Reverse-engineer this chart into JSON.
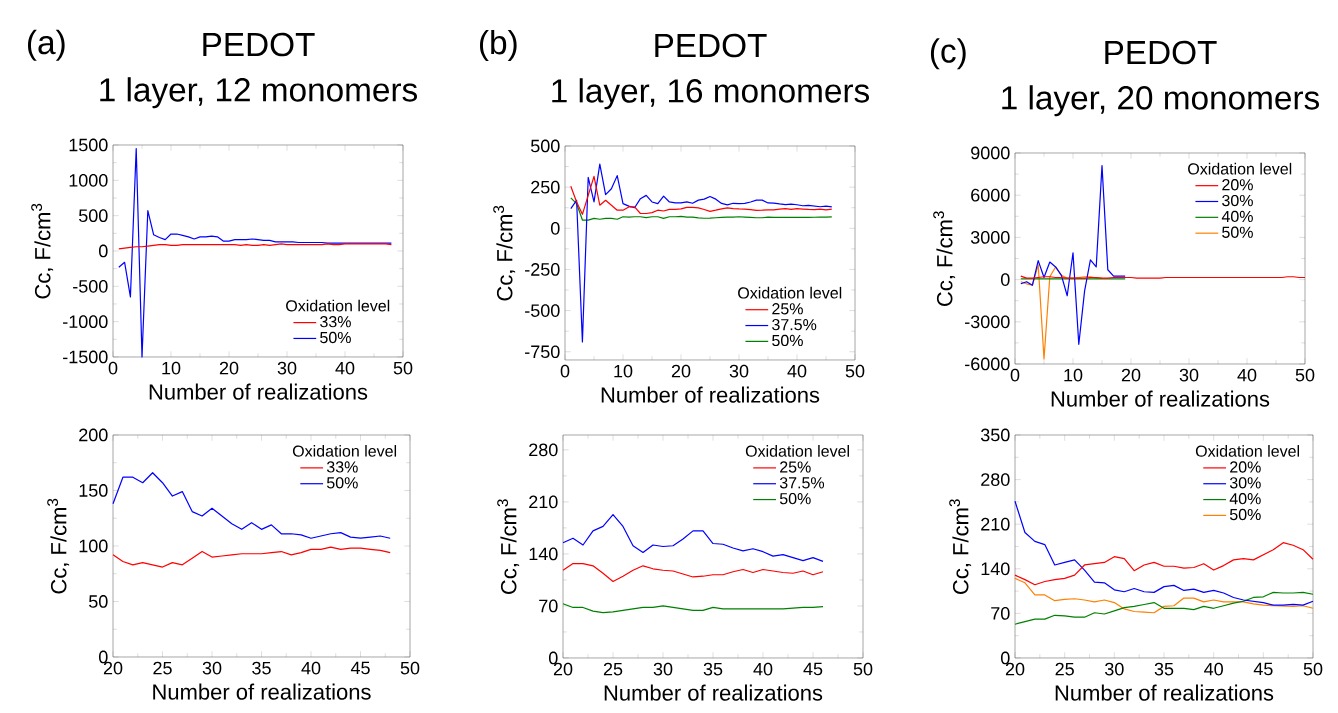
{
  "chart_data": [
    {
      "type": "line",
      "title": "PEDOT",
      "subtitle": "1 layer, 12 monomers",
      "annotations": [
        "(a)"
      ],
      "xlabel": "Number of realizations",
      "ylabel": "Cc, F/cm$^{3}$",
      "legend_title": "Oxidation level",
      "legend": "bottom right",
      "marker": "none",
      "line_style": "solid",
      "xlim": [
        0,
        50
      ],
      "xticks": [
        0,
        10,
        20,
        30,
        40,
        50
      ],
      "ylim": [
        -1500,
        1500
      ],
      "yticks": [
        -1500,
        -1000,
        -500,
        0,
        500,
        1000,
        1500
      ],
      "x": [
        1,
        2,
        3,
        4,
        5,
        6,
        7,
        8,
        9,
        10,
        11,
        12,
        13,
        14,
        15,
        16,
        17,
        18,
        19,
        20,
        21,
        22,
        23,
        24,
        25,
        26,
        27,
        28,
        29,
        30,
        31,
        32,
        33,
        34,
        35,
        36,
        37,
        38,
        39,
        40,
        41,
        42,
        43,
        44,
        45,
        46,
        47,
        48
      ],
      "series": [
        {
          "name": "33%",
          "color": "#ff0000",
          "values": [
            30,
            40,
            50,
            60,
            60,
            70,
            80,
            90,
            90,
            80,
            80,
            90,
            90,
            90,
            90,
            90,
            90,
            90,
            90,
            90,
            90,
            80,
            90,
            80,
            80,
            90,
            80,
            90,
            100,
            90,
            90,
            90,
            90,
            90,
            90,
            90,
            100,
            90,
            90,
            100,
            100,
            100,
            100,
            100,
            100,
            100,
            100,
            90
          ]
        },
        {
          "name": "50%",
          "color": "#0000ff",
          "values": [
            -230,
            -160,
            -650,
            1450,
            -1500,
            570,
            230,
            190,
            160,
            240,
            240,
            220,
            200,
            170,
            200,
            200,
            210,
            200,
            140,
            140,
            160,
            160,
            160,
            170,
            160,
            150,
            150,
            130,
            130,
            130,
            130,
            120,
            120,
            120,
            120,
            120,
            110,
            110,
            110,
            110,
            110,
            110,
            110,
            110,
            110,
            110,
            110,
            110
          ]
        }
      ]
    },
    {
      "type": "line",
      "xlabel": "Number of realizations",
      "ylabel": "Cc, F/cm$^{3}$",
      "legend_title": "Oxidation level",
      "legend": "top right",
      "marker": "none",
      "line_style": "solid",
      "xlim": [
        20,
        50
      ],
      "xticks": [
        20,
        25,
        30,
        35,
        40,
        45,
        50
      ],
      "ylim": [
        0,
        200
      ],
      "yticks": [
        0,
        50,
        100,
        150,
        200
      ],
      "x": [
        20,
        21,
        22,
        23,
        24,
        25,
        26,
        27,
        28,
        29,
        30,
        31,
        32,
        33,
        34,
        35,
        36,
        37,
        38,
        39,
        40,
        41,
        42,
        43,
        44,
        45,
        46,
        47,
        48
      ],
      "series": [
        {
          "name": "33%",
          "color": "#ff0000",
          "values": [
            92,
            86,
            83,
            85,
            83,
            81,
            85,
            83,
            89,
            95,
            90,
            91,
            92,
            93,
            93,
            93,
            94,
            95,
            92,
            94,
            97,
            97,
            99,
            97,
            98,
            98,
            97,
            96,
            94
          ]
        },
        {
          "name": "50%",
          "color": "#0000ff",
          "values": [
            138,
            162,
            162,
            157,
            166,
            157,
            145,
            149,
            131,
            127,
            134,
            127,
            120,
            115,
            121,
            115,
            119,
            111,
            111,
            110,
            107,
            109,
            111,
            112,
            108,
            107,
            108,
            109,
            107
          ]
        }
      ]
    },
    {
      "type": "line",
      "title": "PEDOT",
      "subtitle": "1 layer, 16 monomers",
      "annotations": [
        "(b)"
      ],
      "xlabel": "Number of realizations",
      "ylabel": "Cc, F/cm$^{3}$",
      "legend_title": "Oxidation level",
      "legend": "bottom right",
      "marker": "none",
      "line_style": "solid",
      "xlim": [
        0,
        50
      ],
      "xticks": [
        0,
        10,
        20,
        30,
        40,
        50
      ],
      "ylim": [
        -800,
        500
      ],
      "yticks": [
        -750,
        -500,
        -250,
        0,
        250,
        500
      ],
      "x": [
        1,
        2,
        3,
        4,
        5,
        6,
        7,
        8,
        9,
        10,
        11,
        12,
        13,
        14,
        15,
        16,
        17,
        18,
        19,
        20,
        21,
        22,
        23,
        24,
        25,
        26,
        27,
        28,
        29,
        30,
        31,
        32,
        33,
        34,
        35,
        36,
        37,
        38,
        39,
        40,
        41,
        42,
        43,
        44,
        45,
        46
      ],
      "series": [
        {
          "name": "25%",
          "color": "#ff0000",
          "values": [
            255,
            160,
            85,
            200,
            315,
            140,
            170,
            140,
            110,
            110,
            130,
            130,
            90,
            90,
            95,
            110,
            105,
            115,
            115,
            118,
            127,
            127,
            124,
            114,
            103,
            110,
            118,
            124,
            120,
            118,
            117,
            113,
            109,
            110,
            112,
            112,
            116,
            119,
            115,
            119,
            117,
            115,
            114,
            117,
            112,
            116
          ]
        },
        {
          "name": "37.5%",
          "color": "#0000ff",
          "values": [
            120,
            170,
            -690,
            310,
            160,
            390,
            205,
            240,
            320,
            150,
            135,
            125,
            180,
            200,
            160,
            150,
            195,
            160,
            155,
            155,
            161,
            152,
            171,
            177,
            193,
            177,
            151,
            142,
            152,
            150,
            151,
            160,
            171,
            171,
            154,
            153,
            148,
            144,
            147,
            143,
            137,
            139,
            135,
            131,
            135,
            130
          ]
        },
        {
          "name": "50%",
          "color": "#008000",
          "values": [
            185,
            150,
            50,
            50,
            60,
            55,
            60,
            60,
            55,
            70,
            68,
            70,
            70,
            65,
            70,
            70,
            60,
            70,
            70,
            73,
            68,
            68,
            63,
            61,
            62,
            64,
            66,
            68,
            68,
            70,
            68,
            66,
            64,
            64,
            68,
            66,
            66,
            66,
            66,
            66,
            66,
            66,
            67,
            68,
            68,
            69
          ]
        }
      ]
    },
    {
      "type": "line",
      "xlabel": "Number of realizations",
      "ylabel": "Cc, F/cm$^{3}$",
      "legend_title": "Oxidation level",
      "legend": "top right",
      "marker": "none",
      "line_style": "solid",
      "xlim": [
        20,
        50
      ],
      "xticks": [
        20,
        25,
        30,
        35,
        40,
        45,
        50
      ],
      "ylim": [
        0,
        300
      ],
      "yticks": [
        0,
        70,
        140,
        210,
        280
      ],
      "x": [
        20,
        21,
        22,
        23,
        24,
        25,
        26,
        27,
        28,
        29,
        30,
        31,
        32,
        33,
        34,
        35,
        36,
        37,
        38,
        39,
        40,
        41,
        42,
        43,
        44,
        45,
        46
      ],
      "series": [
        {
          "name": "25%",
          "color": "#ff0000",
          "values": [
            118,
            127,
            127,
            124,
            114,
            103,
            110,
            118,
            124,
            120,
            118,
            117,
            113,
            109,
            110,
            112,
            112,
            116,
            119,
            115,
            119,
            117,
            115,
            114,
            117,
            112,
            116
          ]
        },
        {
          "name": "37.5%",
          "color": "#0000ff",
          "values": [
            155,
            161,
            152,
            171,
            177,
            193,
            177,
            151,
            142,
            152,
            150,
            151,
            160,
            171,
            171,
            154,
            153,
            148,
            144,
            147,
            143,
            137,
            139,
            135,
            131,
            135,
            130
          ]
        },
        {
          "name": "50%",
          "color": "#008000",
          "values": [
            73,
            68,
            68,
            63,
            61,
            62,
            64,
            66,
            68,
            68,
            70,
            68,
            66,
            64,
            64,
            68,
            66,
            66,
            66,
            66,
            66,
            66,
            66,
            67,
            68,
            68,
            69
          ]
        }
      ]
    },
    {
      "type": "line",
      "title": "PEDOT",
      "subtitle": "1 layer, 20 monomers",
      "annotations": [
        "(c)"
      ],
      "xlabel": "Number of realizations",
      "ylabel": "Cc, F/cm$^{3}$",
      "legend_title": "Oxidation level",
      "legend": "top right",
      "marker": "none",
      "line_style": "solid",
      "xlim": [
        0,
        50
      ],
      "xticks": [
        0,
        10,
        20,
        30,
        40,
        50
      ],
      "ylim": [
        -6000,
        9000
      ],
      "yticks": [
        -6000,
        -3000,
        0,
        3000,
        6000,
        9000
      ],
      "x": [
        1,
        2,
        3,
        4,
        5,
        6,
        7,
        8,
        9,
        10,
        11,
        12,
        13,
        14,
        15,
        16,
        17,
        18,
        19,
        20,
        21,
        22,
        23,
        24,
        25,
        26,
        27,
        28,
        29,
        30,
        31,
        32,
        33,
        34,
        35,
        36,
        37,
        38,
        39,
        40,
        41,
        42,
        43,
        44,
        45,
        46,
        47,
        48,
        49,
        50
      ],
      "series": [
        {
          "name": "20%",
          "color": "#ff0000",
          "values": [
            250,
            100,
            100,
            150,
            200,
            200,
            150,
            150,
            100,
            100,
            100,
            100,
            150,
            150,
            100,
            100,
            150,
            150,
            150,
            150,
            100,
            100,
            100,
            100,
            100,
            150,
            150,
            150,
            150,
            150,
            150,
            150,
            150,
            150,
            150,
            150,
            150,
            150,
            150,
            150,
            150,
            150,
            150,
            150,
            150,
            150,
            200,
            200,
            150,
            150
          ]
        },
        {
          "name": "30%",
          "color": "#0000ff",
          "values": [
            -300,
            -150,
            -400,
            1350,
            150,
            1250,
            900,
            300,
            -1150,
            1900,
            -4600,
            -800,
            1400,
            900,
            8100,
            700,
            250,
            250,
            250,
            null,
            null,
            null,
            null,
            null,
            null,
            null,
            null,
            null,
            null,
            null,
            null,
            null,
            null,
            null,
            null,
            null,
            null,
            null,
            null,
            null,
            null,
            null,
            null,
            null,
            null,
            null,
            null,
            null,
            null,
            null
          ]
        },
        {
          "name": "40%",
          "color": "#008000",
          "values": [
            50,
            50,
            50,
            50,
            50,
            50,
            50,
            50,
            50,
            50,
            50,
            50,
            50,
            50,
            50,
            50,
            50,
            50,
            50,
            null,
            null,
            null,
            null,
            null,
            null,
            null,
            null,
            null,
            null,
            null,
            null,
            null,
            null,
            null,
            null,
            null,
            null,
            null,
            null,
            null,
            null,
            null,
            null,
            null,
            null,
            null,
            null,
            null,
            null,
            null
          ]
        },
        {
          "name": "50%",
          "color": "#ff8000",
          "values": [
            -150,
            -300,
            -400,
            1050,
            -5650,
            200,
            900,
            300,
            100,
            100,
            150,
            200,
            200,
            100,
            100,
            null,
            null,
            null,
            null,
            null,
            null,
            null,
            null,
            null,
            null,
            null,
            null,
            null,
            null,
            null,
            null,
            null,
            null,
            null,
            null,
            null,
            null,
            null,
            null,
            null,
            null,
            null,
            null,
            null,
            null,
            null,
            null,
            null,
            null,
            null
          ]
        }
      ]
    },
    {
      "type": "line",
      "xlabel": "Number of realizations",
      "ylabel": "Cc, F/cm$^{3}$",
      "legend_title": "Oxidation level",
      "legend": "top right",
      "marker": "none",
      "line_style": "solid",
      "xlim": [
        20,
        50
      ],
      "xticks": [
        20,
        25,
        30,
        35,
        40,
        45,
        50
      ],
      "ylim": [
        0,
        350
      ],
      "yticks": [
        0,
        70,
        140,
        210,
        280,
        350
      ],
      "x": [
        20,
        21,
        22,
        23,
        24,
        25,
        26,
        27,
        28,
        29,
        30,
        31,
        32,
        33,
        34,
        35,
        36,
        37,
        38,
        39,
        40,
        41,
        42,
        43,
        44,
        45,
        46,
        47,
        48,
        49,
        50
      ],
      "series": [
        {
          "name": "20%",
          "color": "#ff0000",
          "values": [
            130,
            123,
            115,
            120,
            123,
            125,
            130,
            146,
            148,
            150,
            159,
            156,
            137,
            146,
            150,
            144,
            144,
            141,
            142,
            148,
            138,
            145,
            154,
            156,
            154,
            162,
            170,
            181,
            177,
            170,
            155
          ]
        },
        {
          "name": "30%",
          "color": "#0000ff",
          "values": [
            246,
            197,
            183,
            178,
            146,
            150,
            154,
            138,
            119,
            118,
            107,
            104,
            109,
            104,
            103,
            112,
            114,
            106,
            108,
            103,
            106,
            102,
            95,
            91,
            89,
            87,
            83,
            83,
            84,
            83,
            89
          ]
        },
        {
          "name": "40%",
          "color": "#008000",
          "values": [
            53,
            57,
            61,
            61,
            67,
            66,
            64,
            64,
            71,
            69,
            74,
            79,
            81,
            84,
            87,
            78,
            78,
            78,
            76,
            81,
            78,
            82,
            86,
            89,
            95,
            96,
            103,
            102,
            102,
            103,
            100
          ]
        },
        {
          "name": "50%",
          "color": "#ff8000",
          "values": [
            125,
            118,
            99,
            99,
            90,
            92,
            93,
            91,
            88,
            91,
            87,
            77,
            73,
            72,
            71,
            81,
            82,
            94,
            94,
            88,
            91,
            88,
            88,
            88,
            85,
            83,
            82,
            null,
            81,
            82,
            78
          ]
        }
      ]
    }
  ]
}
